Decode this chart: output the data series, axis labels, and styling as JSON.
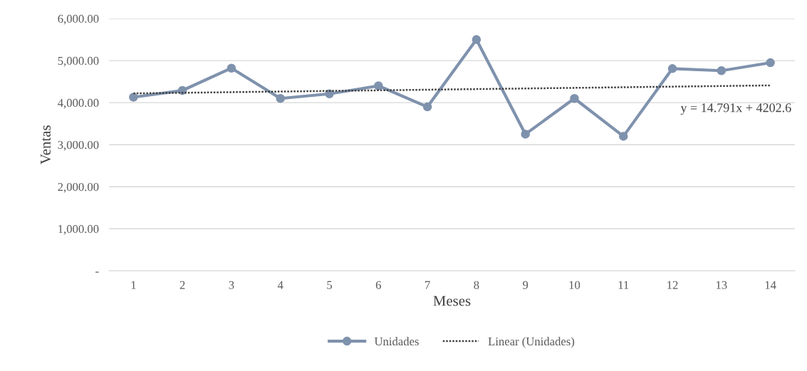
{
  "chart_data": {
    "type": "line",
    "xlabel": "Meses",
    "ylabel": "Ventas",
    "categories": [
      "1",
      "2",
      "3",
      "4",
      "5",
      "6",
      "7",
      "8",
      "9",
      "10",
      "11",
      "12",
      "13",
      "14"
    ],
    "series": [
      {
        "name": "Unidades",
        "color": "#7f92ad",
        "marker": "circle",
        "line_style": "solid",
        "values": [
          4130,
          4290,
          4820,
          4100,
          4210,
          4400,
          3900,
          5500,
          3250,
          4100,
          3200,
          4810,
          4760,
          4950
        ]
      },
      {
        "name": "Linear (Unidades)",
        "color": "#404040",
        "marker": "none",
        "line_style": "dotted",
        "x": [
          "1",
          "14"
        ],
        "values": [
          4220,
          4410
        ]
      }
    ],
    "ylim": [
      0,
      6000
    ],
    "yticks": [
      {
        "value": 0,
        "label": "-"
      },
      {
        "value": 1000,
        "label": "1,000.00"
      },
      {
        "value": 2000,
        "label": "2,000.00"
      },
      {
        "value": 3000,
        "label": "3,000.00"
      },
      {
        "value": 4000,
        "label": "4,000.00"
      },
      {
        "value": 5000,
        "label": "5,000.00"
      },
      {
        "value": 6000,
        "label": "6,000.00"
      }
    ],
    "grid": "y",
    "legend": "bottom",
    "annotations": [
      "y = 14.791x + 4202.6"
    ]
  }
}
